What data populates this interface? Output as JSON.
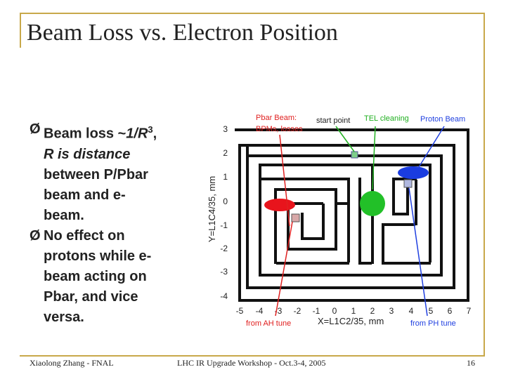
{
  "title": "Beam Loss vs. Electron Position",
  "bullets": [
    {
      "lines": [
        "Beam loss ~1/R3,",
        "R is distance",
        "between P/Pbar",
        "beam and e-",
        "beam."
      ]
    },
    {
      "lines": [
        "No effect on",
        "protons while e-",
        "beam acting on",
        "Pbar, and vice",
        "versa."
      ]
    }
  ],
  "bullet_arrow": "Ø",
  "diagram": {
    "labels": {
      "pbar_beam_1": "Pbar Beam:",
      "pbar_beam_2": "BPMs, losses",
      "start_point": "start point",
      "tel_cleaning": "TEL cleaning",
      "proton_beam": "Proton Beam",
      "from_ah_tune": "from AH tune",
      "from_ph_tune": "from PH tune"
    },
    "xlabel": "X=L1C2/35, mm",
    "ylabel": "Y=L1C4/35, mm",
    "xticks": [
      "-5",
      "-4",
      "-3",
      "-2",
      "-1",
      "0",
      "1",
      "2",
      "3",
      "4",
      "5",
      "6",
      "7"
    ],
    "yticks": [
      "3",
      "2",
      "1",
      "0",
      "-1",
      "-2",
      "-3",
      "-4"
    ],
    "colors": {
      "pbar": "#e8141c",
      "tel": "#22c028",
      "proton": "#1a3ce0",
      "path": "#111111",
      "annot_red": "#e02020",
      "annot_green": "#20b020",
      "annot_blue": "#2040e0"
    }
  },
  "footer": {
    "left": "Xiaolong Zhang - FNAL",
    "center": "LHC IR Upgrade Workshop - Oct.3-4, 2005",
    "right": "16"
  }
}
